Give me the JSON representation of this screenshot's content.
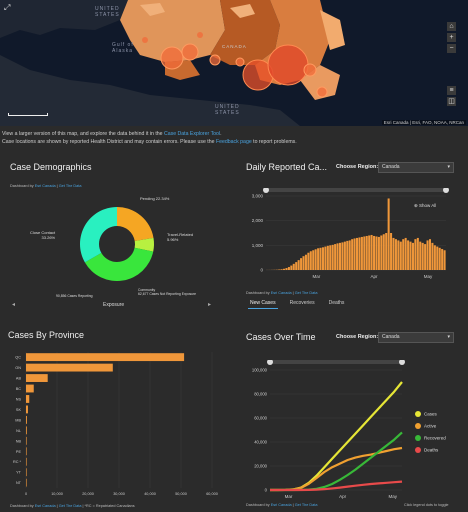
{
  "map": {
    "labels": {
      "united_states_top": "UNITED\nSTATES",
      "gulf_of_alaska": "Gulf of\nAlaska",
      "canada": "CANADA",
      "united_states_bottom": "UNITED\nSTATES"
    },
    "attribution": "Esri Canada | Esri, FAO, NOAA, NRCan"
  },
  "info": {
    "line1_pre": "View a larger version of this map, and explore the data behind it in the ",
    "line1_link": "Case Data Explorer Tool",
    "line1_post": ".",
    "line2_pre": "Case locations are shown by reported Health District and may contain errors. Please use the ",
    "line2_link": "Feedback page",
    "line2_post": " to report problems."
  },
  "demographics": {
    "title": "Case Demographics",
    "dash_prefix": "Dashboard by ",
    "dash_link1": "Esri Canada",
    "dash_sep": " | ",
    "dash_link2": "Get The Data",
    "labels": {
      "pending": "Pending 22.34%",
      "travel": "Travel-Related\n5.96%",
      "close": "Close Contact\n33.26%",
      "community": "Community\n62,677 Cases Not Reporting Exposure",
      "not_reporting": "90,856 Cases Reporting"
    },
    "footer": "Exposure",
    "colors": {
      "pending": "#f5a623",
      "travel": "#b8f040",
      "close": "#29f0c0",
      "community": "#39e63c"
    },
    "slices": [
      {
        "name": "Pending",
        "value": 22.34
      },
      {
        "name": "Travel-Related",
        "value": 5.96
      },
      {
        "name": "Community",
        "value": 38.44
      },
      {
        "name": "Close Contact",
        "value": 33.26
      }
    ]
  },
  "daily": {
    "title": "Daily Reported Ca...",
    "region_label": "Choose Region:",
    "region_value": "Canada",
    "show_all": "Show All",
    "dash_prefix": "Dashboard by ",
    "dash_link1": "Esri Canada",
    "dash_sep": " | ",
    "dash_link2": "Get The Data",
    "tabs": [
      "New Cases",
      "Recoveries",
      "Deaths"
    ],
    "bar_color": "#f0973a"
  },
  "province": {
    "title": "Cases By Province",
    "dash_prefix": "Dashboard by ",
    "dash_link1": "Esri Canada",
    "dash_sep": " | ",
    "dash_link2": "Get The Data",
    "dash_note": " | *RC = Repatriated Canadians",
    "bar_color": "#f0973a"
  },
  "overtime": {
    "title": "Cases Over Time",
    "region_label": "Choose Region:",
    "region_value": "Canada",
    "dash_prefix": "Dashboard by ",
    "dash_link1": "Esri Canada",
    "dash_sep": " | ",
    "dash_link2": "Get The Data",
    "legend_hint": "Click legend dots to toggle",
    "colors": {
      "cases": "#e6e636",
      "active": "#f0a030",
      "recovered": "#38b838",
      "deaths": "#e84a4a"
    }
  },
  "chart_data": [
    {
      "type": "bar",
      "title": "Daily Reported Ca...",
      "ylim": [
        0,
        3000
      ],
      "y_ticks": [
        "3,000",
        "2,000",
        "1,000",
        "0"
      ],
      "x_ticks": [
        "Mar",
        "Apr",
        "May"
      ],
      "values": [
        2,
        3,
        5,
        8,
        12,
        20,
        30,
        50,
        80,
        120,
        180,
        250,
        320,
        400,
        480,
        560,
        620,
        700,
        760,
        800,
        840,
        880,
        900,
        920,
        950,
        980,
        1000,
        1020,
        1050,
        1080,
        1100,
        1120,
        1150,
        1180,
        1200,
        1250,
        1280,
        1300,
        1320,
        1340,
        1360,
        1380,
        1400,
        1420,
        1380,
        1360,
        1340,
        1400,
        1450,
        1500,
        2900,
        1500,
        1300,
        1250,
        1200,
        1150,
        1250,
        1300,
        1200,
        1150,
        1100,
        1250,
        1300,
        1150,
        1100,
        1050,
        1200,
        1250,
        1100,
        1000,
        950,
        900,
        850,
        800
      ]
    },
    {
      "type": "bar",
      "orientation": "horizontal",
      "title": "Cases By Province",
      "xlim": [
        0,
        60000
      ],
      "x_ticks": [
        "0",
        "10,000",
        "20,000",
        "30,000",
        "40,000",
        "50,000",
        "60,000"
      ],
      "categories": [
        "QC",
        "ON",
        "AB",
        "BC",
        "NS",
        "SK",
        "MB",
        "NL",
        "NB",
        "PE",
        "RC *",
        "YT",
        "NT"
      ],
      "values": [
        51000,
        28000,
        7000,
        2500,
        1050,
        630,
        290,
        260,
        120,
        27,
        13,
        11,
        5
      ]
    },
    {
      "type": "line",
      "title": "Cases Over Time",
      "ylim": [
        0,
        100000
      ],
      "y_ticks": [
        "100,000",
        "80,000",
        "60,000",
        "40,000",
        "20,000",
        "0"
      ],
      "x_ticks": [
        "Mar",
        "Apr",
        "May"
      ],
      "series": [
        {
          "name": "Cases",
          "values": [
            0,
            0,
            100,
            500,
            2000,
            6000,
            12000,
            19000,
            26000,
            33000,
            40000,
            47000,
            54000,
            61000,
            68000,
            75000,
            82000,
            90000
          ]
        },
        {
          "name": "Active",
          "values": [
            0,
            0,
            100,
            450,
            1800,
            5200,
            10000,
            15000,
            19000,
            22000,
            25000,
            27000,
            28500,
            29500,
            31000,
            32500,
            34000,
            35000
          ]
        },
        {
          "name": "Recovered",
          "values": [
            0,
            0,
            0,
            0,
            50,
            300,
            1000,
            2500,
            5000,
            8500,
            12500,
            17000,
            22000,
            27000,
            32000,
            37000,
            42000,
            48000
          ]
        },
        {
          "name": "Deaths",
          "values": [
            0,
            0,
            0,
            0,
            20,
            100,
            300,
            700,
            1300,
            2000,
            2800,
            3600,
            4300,
            5000,
            5500,
            6000,
            6500,
            7000
          ]
        }
      ],
      "legend": [
        "Cases",
        "Active",
        "Recovered",
        "Deaths"
      ]
    }
  ]
}
